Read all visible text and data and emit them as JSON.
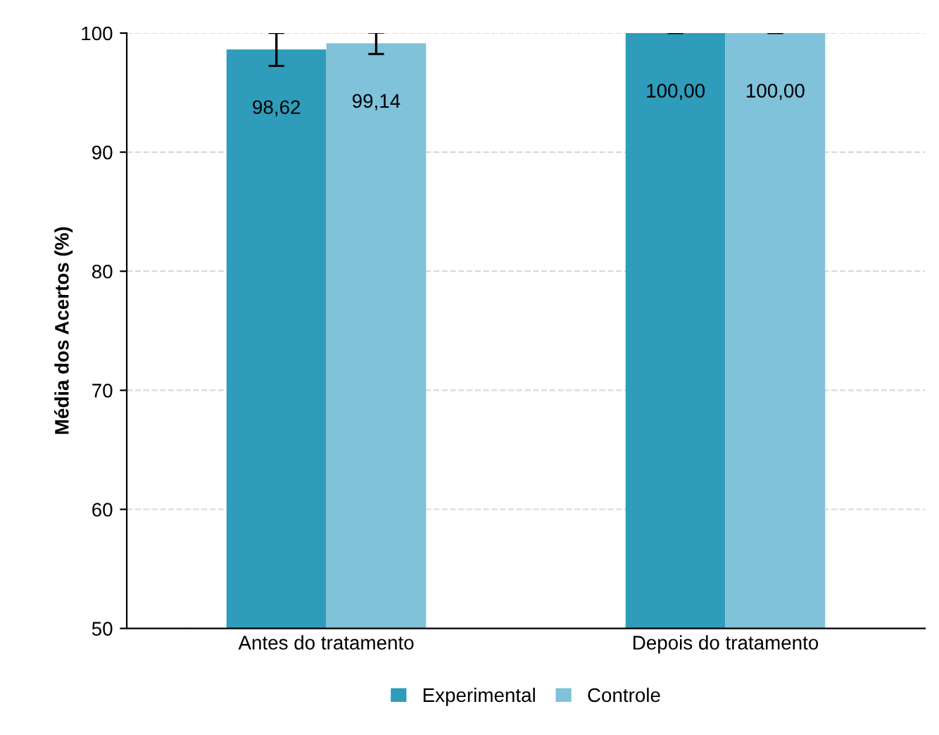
{
  "chart_data": {
    "type": "bar",
    "ylabel": "Média dos Acertos (%)",
    "categories": [
      "Antes do tratamento",
      "Depois do tratamento"
    ],
    "series": [
      {
        "name": "Experimental",
        "color": "#2e9cba",
        "values": [
          98.62,
          100.0
        ],
        "errors": [
          1.38,
          0
        ],
        "value_labels": [
          "98,62",
          "100,00"
        ]
      },
      {
        "name": "Controle",
        "color": "#7fc2da",
        "values": [
          99.14,
          100.0
        ],
        "errors": [
          0.9,
          0
        ],
        "value_labels": [
          "99,14",
          "100,00"
        ]
      }
    ],
    "ylim": [
      50,
      100
    ],
    "yticks": [
      50,
      60,
      70,
      80,
      90,
      100
    ],
    "grid": "y",
    "legend": "bottom"
  }
}
